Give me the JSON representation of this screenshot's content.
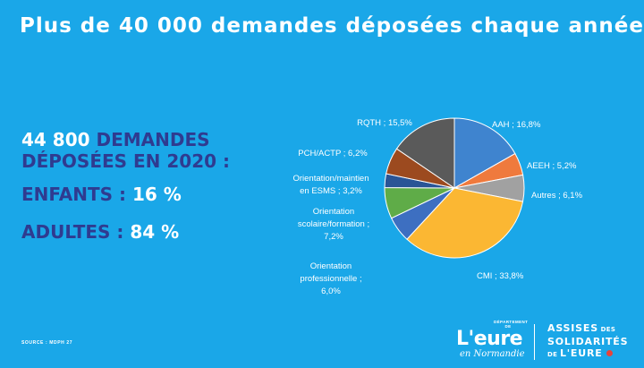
{
  "title": "Plus de 40 000 demandes déposées chaque année",
  "stats": {
    "number": "44 800",
    "line1_rest": " DEMANDES",
    "line2": "DÉPOSÉES EN 2020 :",
    "enfants_label": "ENFANTS : ",
    "enfants_value": "16 %",
    "adultes_label": "ADULTES : ",
    "adultes_value": "84 %"
  },
  "chart_data": {
    "type": "pie",
    "slices": [
      {
        "name": "AAH",
        "value": 16.8,
        "color": "#3f84cf",
        "label": [
          "AAH ; 16,8%"
        ]
      },
      {
        "name": "AEEH",
        "value": 5.2,
        "color": "#ef7a3d",
        "label": [
          "AEEH ; 5,2%"
        ]
      },
      {
        "name": "Autres",
        "value": 6.1,
        "color": "#a1a1a1",
        "label": [
          "Autres ; 6,1%"
        ]
      },
      {
        "name": "CMI",
        "value": 33.8,
        "color": "#fbb733",
        "label": [
          "CMI ; 33,8%"
        ]
      },
      {
        "name": "Orientation professionnelle",
        "value": 6.0,
        "color": "#3d6fc1",
        "label": [
          "Orientation",
          "professionnelle ;",
          "6,0%"
        ]
      },
      {
        "name": "Orientation scolaire/formation",
        "value": 7.2,
        "color": "#5fac48",
        "label": [
          "Orientation",
          "scolaire/formation ;",
          "7,2%"
        ]
      },
      {
        "name": "Orientation/maintien en ESMS",
        "value": 3.2,
        "color": "#2a5596",
        "label": [
          "Orientation/maintien",
          "en ESMS ; 3,2%"
        ]
      },
      {
        "name": "PCH/ACTP",
        "value": 6.2,
        "color": "#9c4a1f",
        "label": [
          "PCH/ACTP ; 6,2%"
        ]
      },
      {
        "name": "RQTH",
        "value": 15.5,
        "color": "#5a5a5a",
        "label": [
          "RQTH ; 15,5%"
        ]
      }
    ]
  },
  "source": "SOURCE : MDPH 27",
  "logo_eure": {
    "dept_line1": "DÉPARTEMENT DE",
    "main": "L'eure",
    "sub": "en Normandie"
  },
  "logo_assises": {
    "line1": "ASSISES",
    "line1_small": " DES",
    "line2": "SOLIDARITÉS",
    "line3_small": "DE ",
    "line3": "L'EURE"
  },
  "colors": {
    "background": "#1aa7e8",
    "accent_dark": "#2f3b90"
  }
}
